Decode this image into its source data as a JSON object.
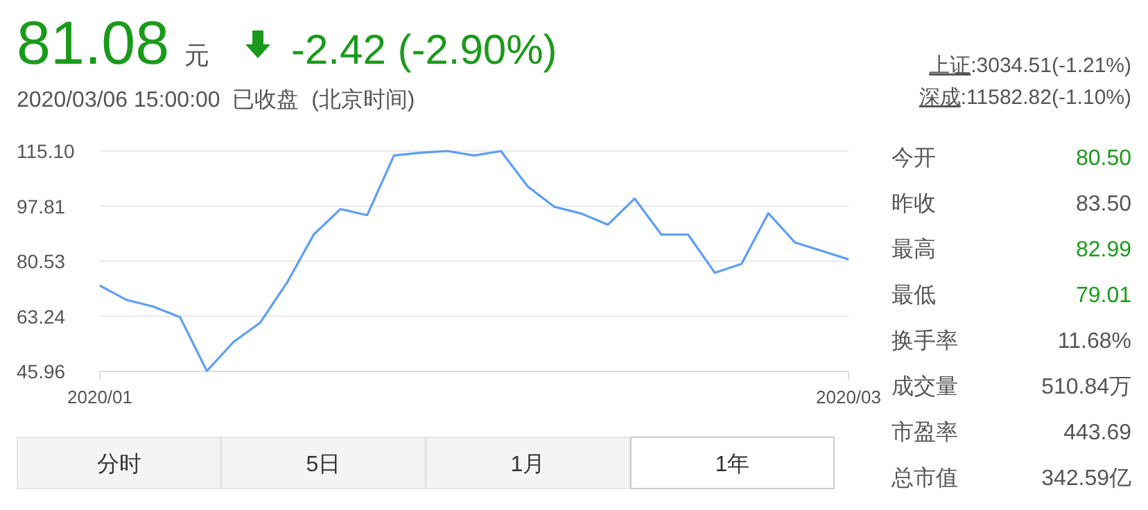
{
  "chart_data": {
    "type": "line",
    "title": "81.08",
    "subtitle": "2020/03/06 15:00:00  已收盘  (北京时间)",
    "categories": [
      "2020/01",
      null,
      null,
      null,
      null,
      null,
      null,
      null,
      null,
      null,
      null,
      null,
      null,
      null,
      null,
      null,
      null,
      null,
      null,
      null,
      null,
      null,
      null,
      null,
      null,
      null,
      null,
      null,
      "2020/03"
    ],
    "series": [
      {
        "color": "#5c9ef5",
        "values": [
          72.9,
          68.4,
          66.3,
          63.0,
          46.1,
          55.2,
          61.3,
          73.8,
          88.9,
          96.9,
          95.0,
          113.7,
          114.6,
          115.1,
          113.7,
          115.1,
          104.0,
          97.6,
          95.5,
          92.0,
          100.2,
          88.9,
          88.9,
          76.9,
          79.7,
          95.6,
          86.4,
          83.8,
          81.1
        ]
      }
    ],
    "ylim": [
      45.96,
      115.1
    ],
    "yticks": [
      45.96,
      {
        "value": 63.24,
        "label": "63.24"
      },
      {
        "value": 80.53,
        "label": "80.53"
      },
      {
        "value": 97.81,
        "label": "97.81"
      },
      {
        "value": 115.1,
        "label": "115.10"
      }
    ],
    "grid": "y",
    "line_style": "solid",
    "annotations": [
      "元",
      "-2.42 (-2.90%)",
      "上证:3034.51(-1.21%)",
      "深成:11582.82(-1.10%)",
      "今开",
      "80.50",
      "昨收",
      "83.50",
      "最高",
      "82.99",
      "最低",
      "79.01",
      "换手率",
      "11.68%",
      "成交量",
      "510.84万",
      "市盈率",
      "443.69",
      "总市值",
      "342.59亿",
      "分时",
      "5日",
      "1月",
      "1年"
    ]
  }
}
